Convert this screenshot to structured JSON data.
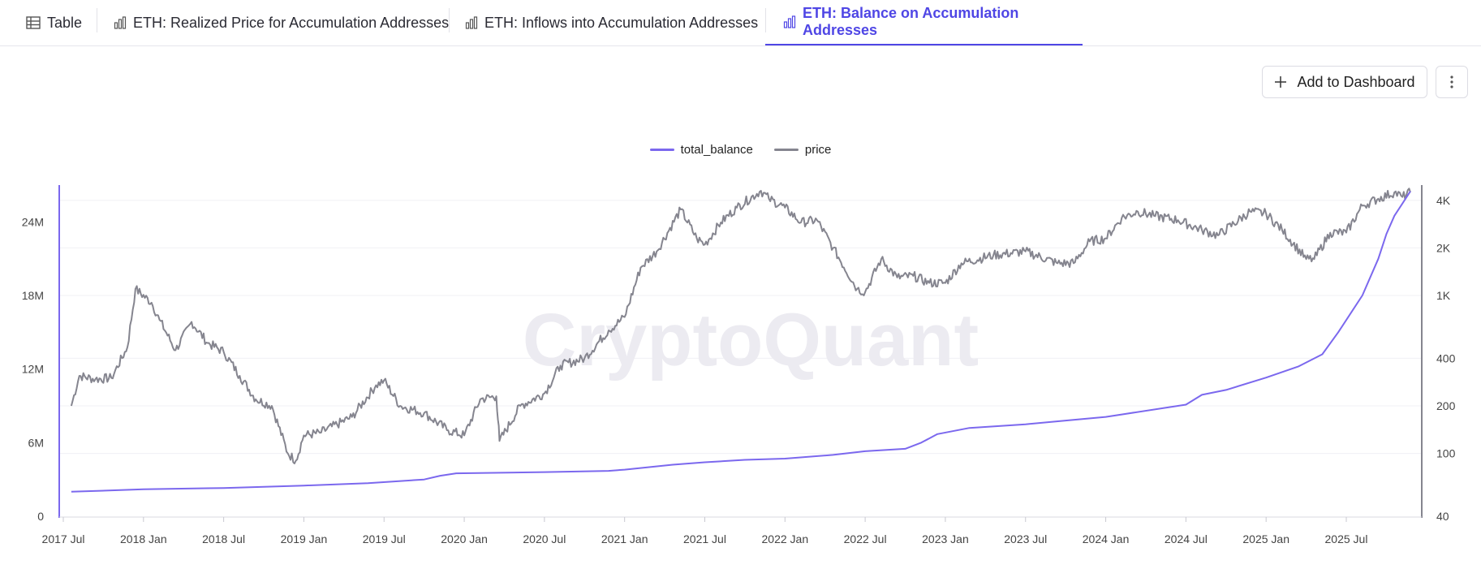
{
  "tabs": [
    {
      "label": "Table",
      "icon": "table-icon",
      "active": false
    },
    {
      "label": "ETH: Realized Price for Accumulation Addresses",
      "icon": "bar-chart-icon",
      "active": false
    },
    {
      "label": "ETH: Inflows into Accumulation Addresses",
      "icon": "bar-chart-icon",
      "active": false
    },
    {
      "label": "ETH: Balance on Accumulation Addresses",
      "icon": "bar-chart-icon",
      "active": true
    }
  ],
  "toolbar": {
    "add_label": "Add to Dashboard",
    "add_icon": "plus-icon",
    "more_icon": "more-vertical-icon"
  },
  "colors": {
    "accent": "#4f46e5",
    "balance_line": "#7b68ee",
    "price_line": "#85858f"
  },
  "chart_data": {
    "type": "line",
    "title": "ETH: Balance on Accumulation Addresses",
    "watermark": "CryptoQuant",
    "legend": [
      {
        "name": "total_balance",
        "color": "#7b68ee"
      },
      {
        "name": "price",
        "color": "#85858f"
      }
    ],
    "x_ticks": [
      "2017 Jul",
      "2018 Jan",
      "2018 Jul",
      "2019 Jan",
      "2019 Jul",
      "2020 Jan",
      "2020 Jul",
      "2021 Jan",
      "2021 Jul",
      "2022 Jan",
      "2022 Jul",
      "2023 Jan",
      "2023 Jul",
      "2024 Jan",
      "2024 Jul",
      "2025 Jan",
      "2025 Jul"
    ],
    "x_range": [
      2017.5,
      2025.92
    ],
    "y_left": {
      "label": "total_balance",
      "ticks": [
        0,
        6000000,
        12000000,
        18000000,
        24000000
      ],
      "tick_labels": [
        "0",
        "6M",
        "12M",
        "18M",
        "24M"
      ],
      "range": [
        0,
        27000000
      ]
    },
    "y_right": {
      "label": "price",
      "scale": "log",
      "ticks": [
        40,
        100,
        200,
        400,
        1000,
        2000,
        4000
      ],
      "tick_labels": [
        "40",
        "100",
        "200",
        "400",
        "1K",
        "2K",
        "4K"
      ],
      "range": [
        40,
        5000
      ]
    },
    "series": [
      {
        "name": "total_balance",
        "axis": "left",
        "x": [
          2017.55,
          2018.0,
          2018.5,
          2019.0,
          2019.4,
          2019.75,
          2019.85,
          2019.95,
          2020.5,
          2020.9,
          2021.0,
          2021.3,
          2021.5,
          2021.75,
          2022.0,
          2022.3,
          2022.5,
          2022.75,
          2022.85,
          2022.95,
          2023.15,
          2023.5,
          2023.75,
          2024.0,
          2024.5,
          2024.6,
          2024.75,
          2025.0,
          2025.2,
          2025.35,
          2025.45,
          2025.6,
          2025.7,
          2025.75,
          2025.8,
          2025.85,
          2025.9
        ],
        "values": [
          2000000,
          2200000,
          2300000,
          2500000,
          2700000,
          3000000,
          3300000,
          3500000,
          3600000,
          3700000,
          3800000,
          4200000,
          4400000,
          4600000,
          4700000,
          5000000,
          5300000,
          5500000,
          6000000,
          6700000,
          7200000,
          7500000,
          7800000,
          8100000,
          9100000,
          9900000,
          10300000,
          11300000,
          12200000,
          13200000,
          15000000,
          18000000,
          21000000,
          23000000,
          24500000,
          25500000,
          26500000
        ]
      },
      {
        "name": "price",
        "axis": "right",
        "x": [
          2017.55,
          2017.6,
          2017.7,
          2017.8,
          2017.9,
          2017.95,
          2018.05,
          2018.1,
          2018.2,
          2018.3,
          2018.4,
          2018.5,
          2018.6,
          2018.7,
          2018.8,
          2018.9,
          2018.95,
          2019.0,
          2019.1,
          2019.3,
          2019.45,
          2019.5,
          2019.6,
          2019.75,
          2019.9,
          2020.0,
          2020.1,
          2020.2,
          2020.22,
          2020.35,
          2020.5,
          2020.6,
          2020.75,
          2020.9,
          2021.0,
          2021.1,
          2021.2,
          2021.35,
          2021.45,
          2021.5,
          2021.6,
          2021.7,
          2021.85,
          2021.9,
          2022.0,
          2022.1,
          2022.2,
          2022.3,
          2022.45,
          2022.5,
          2022.6,
          2022.7,
          2022.8,
          2022.9,
          2023.0,
          2023.1,
          2023.3,
          2023.5,
          2023.7,
          2023.8,
          2023.9,
          2024.0,
          2024.1,
          2024.2,
          2024.3,
          2024.45,
          2024.6,
          2024.7,
          2024.9,
          2025.0,
          2025.1,
          2025.25,
          2025.3,
          2025.4,
          2025.5,
          2025.6,
          2025.7,
          2025.8,
          2025.85,
          2025.9
        ],
        "values": [
          200,
          310,
          295,
          300,
          470,
          1100,
          900,
          700,
          450,
          680,
          500,
          440,
          310,
          220,
          200,
          100,
          90,
          130,
          135,
          170,
          270,
          290,
          200,
          180,
          140,
          130,
          220,
          230,
          120,
          200,
          240,
          360,
          400,
          600,
          730,
          1500,
          1900,
          3500,
          2300,
          2100,
          2900,
          3600,
          4600,
          4100,
          3600,
          2900,
          3000,
          2000,
          1100,
          1050,
          1700,
          1300,
          1330,
          1200,
          1200,
          1600,
          1800,
          1900,
          1600,
          1600,
          2200,
          2300,
          3100,
          3400,
          3200,
          3000,
          2600,
          2400,
          3400,
          3300,
          2600,
          1700,
          1700,
          2500,
          2500,
          3700,
          4100,
          4500,
          4200,
          4500
        ]
      }
    ]
  }
}
